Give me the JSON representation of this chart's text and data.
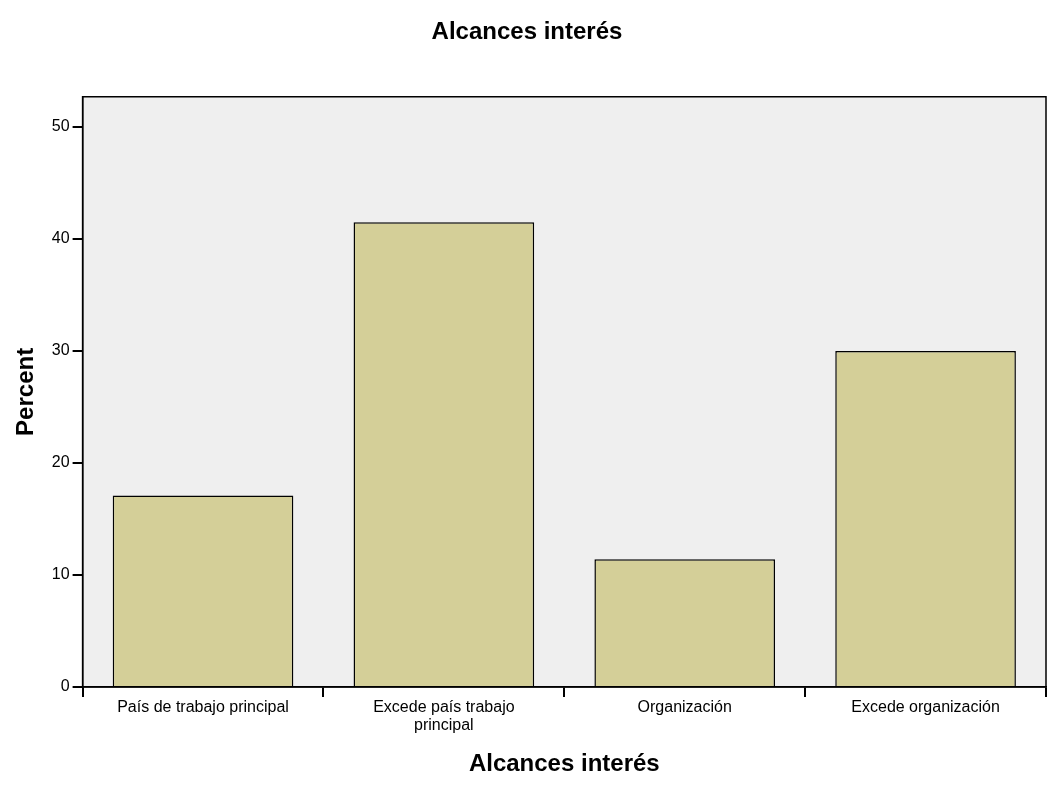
{
  "chart_data": {
    "type": "bar",
    "title": "Alcances interés",
    "xlabel": "Alcances interés",
    "ylabel": "Percent",
    "categories": [
      "País de trabajo principal",
      "Excede país trabajo principal",
      "Organización",
      "Excede organización"
    ],
    "values": [
      17.1,
      41.5,
      11.4,
      30.0
    ],
    "color": "#d4cf98",
    "ylim": [
      0,
      52.7
    ],
    "yticks": [
      0,
      10,
      20,
      30,
      40,
      50
    ],
    "grid": false,
    "legend": false
  }
}
